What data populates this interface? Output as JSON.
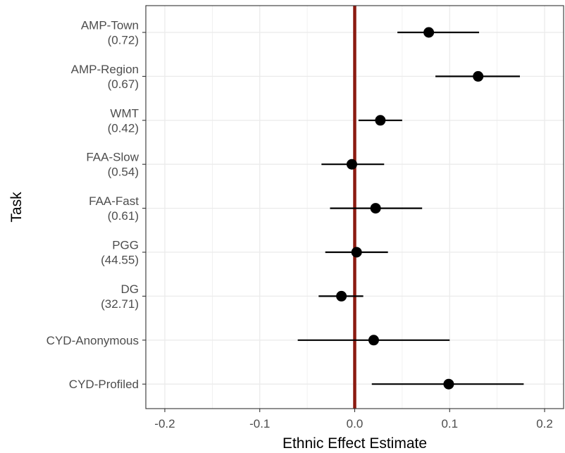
{
  "chart_data": {
    "type": "scatter",
    "subtype": "dot-and-whisker",
    "xlabel": "Ethnic Effect Estimate",
    "ylabel": "Task",
    "xlim": [
      -0.22,
      0.22
    ],
    "x_ticks": [
      -0.2,
      -0.1,
      0.0,
      0.1,
      0.2
    ],
    "x_tick_labels": [
      "-0.2",
      "-0.1",
      "0.0",
      "0.1",
      "0.2"
    ],
    "reference_line": {
      "x": 0,
      "color": "#8b1a10"
    },
    "grid": true,
    "categories": [
      {
        "label": [
          "AMP-Town",
          "(0.72)"
        ],
        "estimate": 0.078,
        "ci": [
          0.045,
          0.131
        ]
      },
      {
        "label": [
          "AMP-Region",
          "(0.67)"
        ],
        "estimate": 0.13,
        "ci": [
          0.085,
          0.174
        ]
      },
      {
        "label": [
          "WMT",
          "(0.42)"
        ],
        "estimate": 0.027,
        "ci": [
          0.004,
          0.05
        ]
      },
      {
        "label": [
          "FAA-Slow",
          "(0.54)"
        ],
        "estimate": -0.003,
        "ci": [
          -0.035,
          0.031
        ]
      },
      {
        "label": [
          "FAA-Fast",
          "(0.61)"
        ],
        "estimate": 0.022,
        "ci": [
          -0.026,
          0.071
        ]
      },
      {
        "label": [
          "PGG",
          "(44.55)"
        ],
        "estimate": 0.002,
        "ci": [
          -0.031,
          0.035
        ]
      },
      {
        "label": [
          "DG",
          "(32.71)"
        ],
        "estimate": -0.014,
        "ci": [
          -0.038,
          0.009
        ]
      },
      {
        "label": [
          "CYD-Anonymous"
        ],
        "estimate": 0.02,
        "ci": [
          -0.06,
          0.1
        ]
      },
      {
        "label": [
          "CYD-Profiled"
        ],
        "estimate": 0.099,
        "ci": [
          0.018,
          0.178
        ]
      }
    ],
    "colors": {
      "points": "#000000",
      "grid": "#ebebeb",
      "panel_border": "#333333"
    }
  }
}
